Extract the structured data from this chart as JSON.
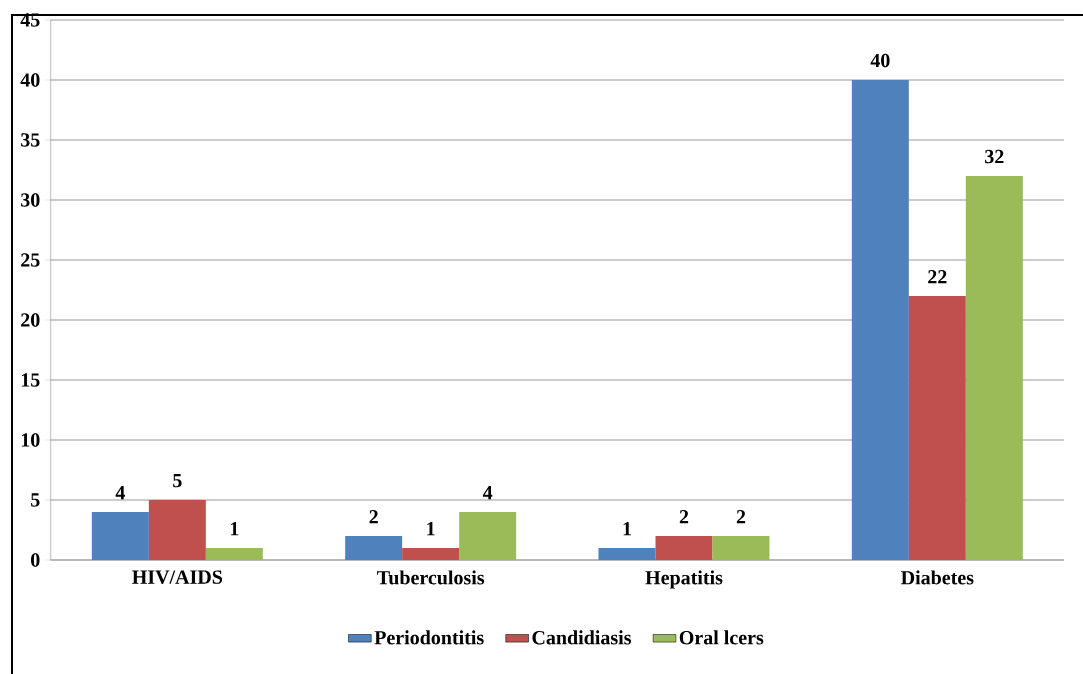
{
  "chart_data": {
    "type": "bar",
    "categories": [
      "HIV/AIDS",
      "Tuberculosis",
      "Hepatitis",
      "Diabetes"
    ],
    "series": [
      {
        "name": "Periodontitis",
        "color": "#4f81bd",
        "values": [
          4,
          2,
          1,
          40
        ]
      },
      {
        "name": "Candidiasis",
        "color": "#c0504d",
        "values": [
          5,
          1,
          2,
          22
        ]
      },
      {
        "name": "Oral lcers",
        "color": "#9bbb59",
        "values": [
          1,
          4,
          2,
          32
        ]
      }
    ],
    "ylim": [
      0,
      45
    ],
    "yticks": [
      0,
      5,
      10,
      15,
      20,
      25,
      30,
      35,
      40,
      45
    ],
    "grid": "y",
    "legend": "bottom",
    "data_labels": true
  }
}
